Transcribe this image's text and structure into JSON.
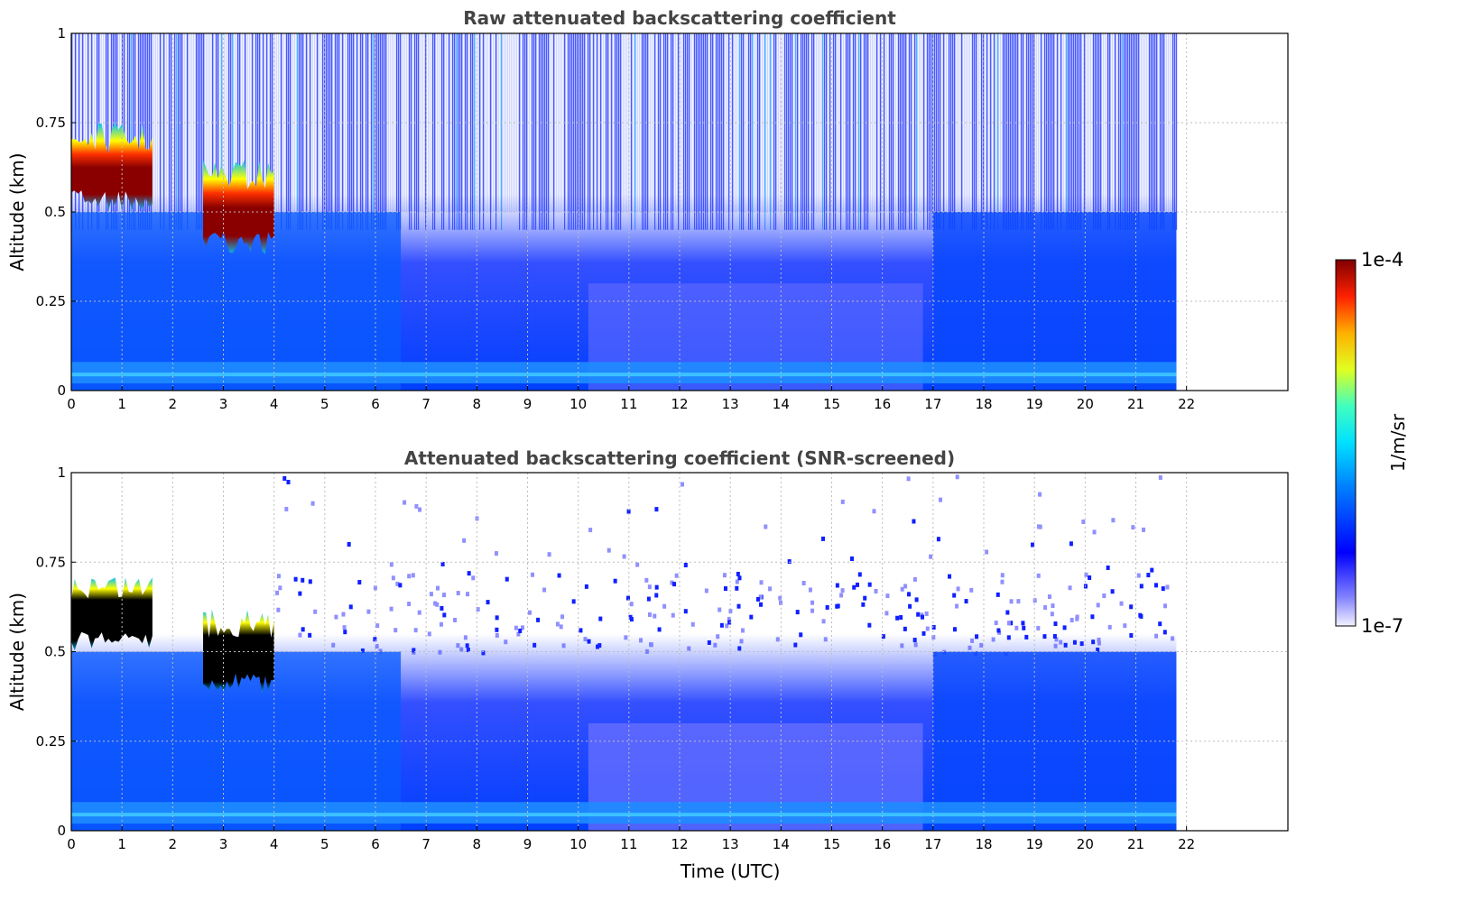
{
  "chart_data": [
    {
      "type": "heatmap",
      "title": "Raw attenuated backscattering coefficient",
      "xlabel": "",
      "ylabel": "Altitude (km)",
      "xlim": [
        0,
        24
      ],
      "ylim": [
        0,
        1
      ],
      "x_ticks": [
        "0",
        "1",
        "2",
        "3",
        "4",
        "5",
        "6",
        "7",
        "8",
        "9",
        "10",
        "11",
        "12",
        "13",
        "14",
        "15",
        "16",
        "17",
        "18",
        "19",
        "20",
        "21",
        "22"
      ],
      "y_ticks": [
        "0",
        "0.25",
        "0.5",
        "0.75",
        "1"
      ],
      "data_time_range": [
        0,
        21.8
      ],
      "grid": true,
      "features": [
        {
          "label": "cloud layer",
          "time": [
            0,
            1.6
          ],
          "altitude": [
            0.5,
            0.75
          ],
          "level": "high"
        },
        {
          "label": "cloud layer",
          "time": [
            2.6,
            4.0
          ],
          "altitude": [
            0.38,
            0.65
          ],
          "level": "high"
        },
        {
          "label": "boundary layer",
          "time": [
            0,
            21.8
          ],
          "altitude": [
            0,
            0.5
          ],
          "level": "medium"
        }
      ]
    },
    {
      "type": "heatmap",
      "title": "Attenuated backscattering coefficient (SNR-screened)",
      "xlabel": "Time (UTC)",
      "ylabel": "Altitude (km)",
      "xlim": [
        0,
        24
      ],
      "ylim": [
        0,
        1
      ],
      "x_ticks": [
        "0",
        "1",
        "2",
        "3",
        "4",
        "5",
        "6",
        "7",
        "8",
        "9",
        "10",
        "11",
        "12",
        "13",
        "14",
        "15",
        "16",
        "17",
        "18",
        "19",
        "20",
        "21",
        "22"
      ],
      "y_ticks": [
        "0",
        "0.25",
        "0.5",
        "0.75",
        "1"
      ],
      "data_time_range": [
        0,
        21.8
      ],
      "grid": true,
      "features": [
        {
          "label": "cloud layer",
          "time": [
            0,
            1.6
          ],
          "altitude": [
            0.5,
            0.72
          ],
          "level": "saturated"
        },
        {
          "label": "cloud layer",
          "time": [
            2.6,
            4.0
          ],
          "altitude": [
            0.38,
            0.62
          ],
          "level": "saturated"
        },
        {
          "label": "boundary layer",
          "time": [
            0,
            21.8
          ],
          "altitude": [
            0,
            0.55
          ],
          "level": "medium"
        }
      ]
    }
  ],
  "colorbar": {
    "label": "1/m/sr",
    "max_label": "1e-4",
    "min_label": "1e-7",
    "range": [
      1e-07,
      0.0001
    ],
    "scale": "log",
    "colormap": "jet",
    "colors": [
      "#eeeeff",
      "#0000ff",
      "#0088ff",
      "#00ffff",
      "#ffff00",
      "#ff8800",
      "#ff0000",
      "#880000"
    ]
  }
}
